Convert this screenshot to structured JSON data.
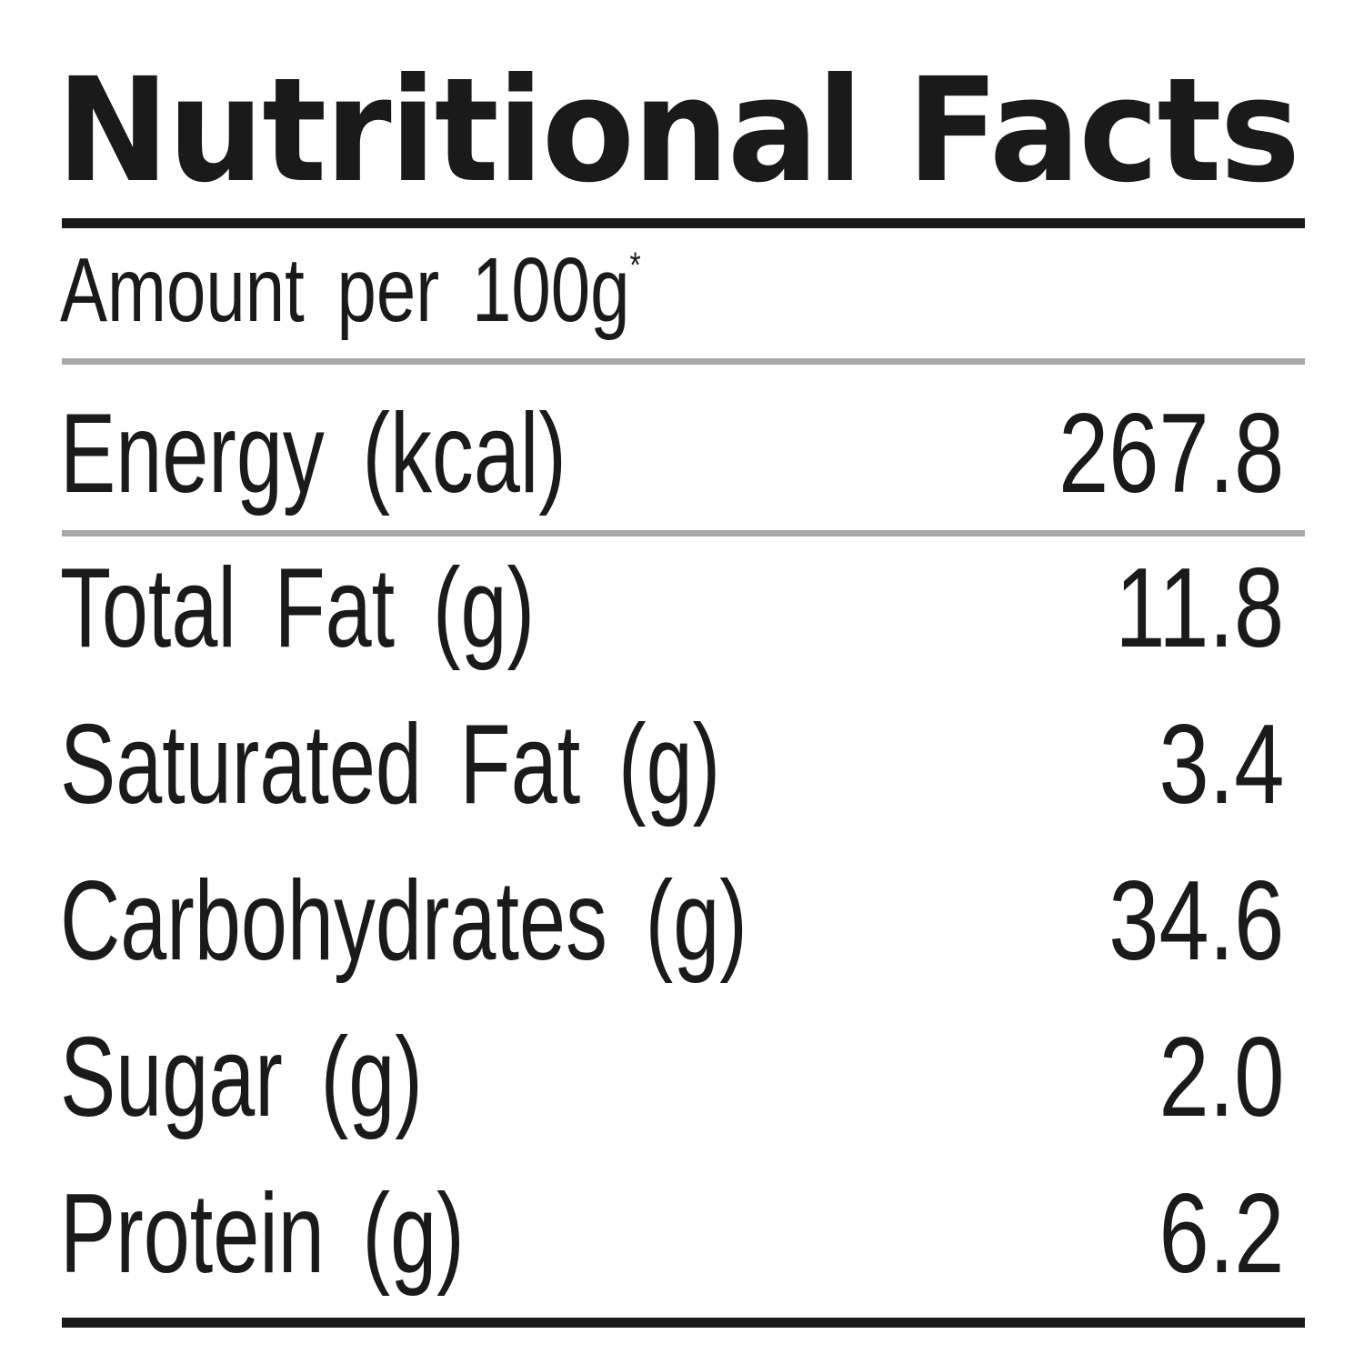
{
  "title": "Nutritional Facts",
  "serving": {
    "text": "Amount per 100g",
    "marker": "*"
  },
  "rows": [
    {
      "label": "Energy (kcal)",
      "value": "267.8"
    },
    {
      "label": "Total Fat (g)",
      "value": "11.8"
    },
    {
      "label": "Saturated Fat (g)",
      "value": "3.4"
    },
    {
      "label": "Carbohydrates (g)",
      "value": "34.6"
    },
    {
      "label": "Sugar (g)",
      "value": "2.0"
    },
    {
      "label": "Protein (g)",
      "value": "6.2"
    }
  ],
  "colors": {
    "text": "#1a1a1a",
    "thin_rule": "#a8a8a8"
  }
}
